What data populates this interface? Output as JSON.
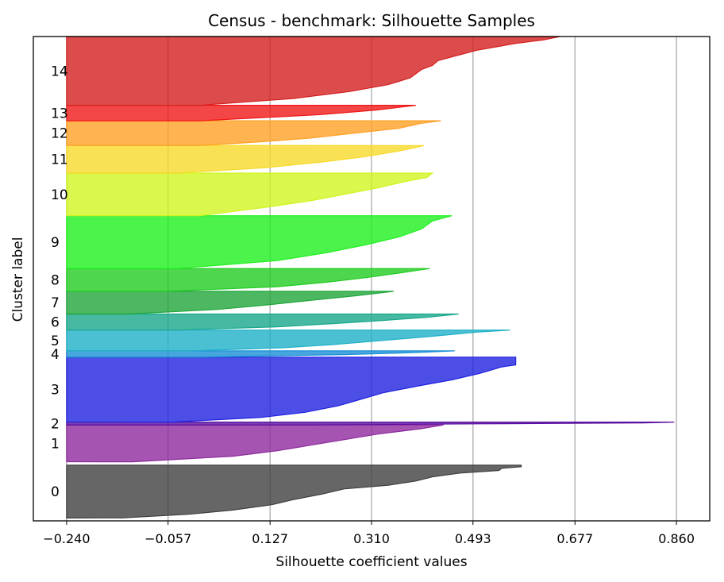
{
  "chart_data": {
    "type": "area",
    "title": "Census - benchmark: Silhouette Samples",
    "xlabel": "Silhouette coefficient values",
    "ylabel": "Cluster label",
    "xlim": [
      -0.3,
      0.92
    ],
    "xticks": [
      "-0.240",
      "-0.057",
      "0.127",
      "0.310",
      "0.493",
      "0.677",
      "0.860"
    ],
    "xtick_values": [
      -0.24,
      -0.057,
      0.127,
      0.31,
      0.493,
      0.677,
      0.86
    ],
    "grid": "vertical",
    "ylim": [
      0,
      1000
    ],
    "clusters": [
      {
        "label": "0",
        "color": "#404040",
        "y_range": [
          6,
          115
        ],
        "max": 0.58,
        "min": -0.24,
        "profile": [
          [
            0,
            0.58
          ],
          [
            0.03,
            0.58
          ],
          [
            0.06,
            0.545
          ],
          [
            0.1,
            0.54
          ],
          [
            0.15,
            0.47
          ],
          [
            0.22,
            0.42
          ],
          [
            0.3,
            0.39
          ],
          [
            0.38,
            0.34
          ],
          [
            0.45,
            0.26
          ],
          [
            0.55,
            0.22
          ],
          [
            0.65,
            0.17
          ],
          [
            0.75,
            0.13
          ],
          [
            0.85,
            0.06
          ],
          [
            0.93,
            -0.02
          ],
          [
            1,
            -0.14
          ]
        ]
      },
      {
        "label": "1",
        "color": "#8e2a9e",
        "y_range": [
          122,
          198
        ],
        "max": 0.44,
        "min": -0.24,
        "profile": [
          [
            0,
            0.44
          ],
          [
            0.1,
            0.4
          ],
          [
            0.25,
            0.32
          ],
          [
            0.4,
            0.26
          ],
          [
            0.55,
            0.2
          ],
          [
            0.7,
            0.14
          ],
          [
            0.85,
            0.06
          ],
          [
            1,
            -0.12
          ]
        ]
      },
      {
        "label": "2",
        "color": "#5a0fa0",
        "y_range": [
          198,
          204
        ],
        "max": 0.856,
        "min": -0.24,
        "profile": [
          [
            0,
            0.856
          ],
          [
            0.3,
            0.8
          ],
          [
            0.6,
            0.5
          ],
          [
            1,
            0.2
          ]
        ]
      },
      {
        "label": "3",
        "color": "#1f22e0",
        "y_range": [
          204,
          338
        ],
        "max": 0.57,
        "min": -0.24,
        "profile": [
          [
            0,
            0.57
          ],
          [
            0.12,
            0.57
          ],
          [
            0.15,
            0.545
          ],
          [
            0.25,
            0.505
          ],
          [
            0.35,
            0.455
          ],
          [
            0.45,
            0.39
          ],
          [
            0.55,
            0.33
          ],
          [
            0.65,
            0.29
          ],
          [
            0.75,
            0.25
          ],
          [
            0.85,
            0.19
          ],
          [
            0.93,
            0.11
          ],
          [
            1,
            -0.05
          ]
        ]
      },
      {
        "label": "4",
        "color": "#1a90d6",
        "y_range": [
          338,
          351
        ],
        "max": 0.46,
        "min": -0.24,
        "profile": [
          [
            0,
            0.46
          ],
          [
            0.3,
            0.38
          ],
          [
            0.6,
            0.26
          ],
          [
            1,
            0.0
          ]
        ]
      },
      {
        "label": "5",
        "color": "#1fb0c8",
        "y_range": [
          351,
          394
        ],
        "max": 0.56,
        "min": -0.24,
        "profile": [
          [
            0,
            0.56
          ],
          [
            0.1,
            0.5
          ],
          [
            0.3,
            0.42
          ],
          [
            0.5,
            0.33
          ],
          [
            0.7,
            0.24
          ],
          [
            0.85,
            0.15
          ],
          [
            1,
            -0.02
          ]
        ]
      },
      {
        "label": "6",
        "color": "#19a88c",
        "y_range": [
          394,
          427
        ],
        "max": 0.467,
        "min": -0.24,
        "profile": [
          [
            0,
            0.467
          ],
          [
            0.2,
            0.41
          ],
          [
            0.4,
            0.33
          ],
          [
            0.6,
            0.24
          ],
          [
            0.8,
            0.14
          ],
          [
            1,
            -0.04
          ]
        ]
      },
      {
        "label": "7",
        "color": "#20a63a",
        "y_range": [
          427,
          474
        ],
        "max": 0.35,
        "min": -0.24,
        "profile": [
          [
            0,
            0.35
          ],
          [
            0.2,
            0.28
          ],
          [
            0.4,
            0.2
          ],
          [
            0.6,
            0.12
          ],
          [
            0.8,
            0.03
          ],
          [
            1,
            -0.13
          ]
        ]
      },
      {
        "label": "8",
        "color": "#22cc22",
        "y_range": [
          474,
          521
        ],
        "max": 0.415,
        "min": -0.24,
        "profile": [
          [
            0,
            0.415
          ],
          [
            0.2,
            0.36
          ],
          [
            0.4,
            0.3
          ],
          [
            0.6,
            0.23
          ],
          [
            0.8,
            0.14
          ],
          [
            1,
            -0.06
          ]
        ]
      },
      {
        "label": "9",
        "color": "#1ef01e",
        "y_range": [
          521,
          630
        ],
        "max": 0.455,
        "min": -0.24,
        "profile": [
          [
            0,
            0.455
          ],
          [
            0.1,
            0.42
          ],
          [
            0.25,
            0.4
          ],
          [
            0.4,
            0.36
          ],
          [
            0.55,
            0.3
          ],
          [
            0.7,
            0.23
          ],
          [
            0.85,
            0.14
          ],
          [
            1,
            -0.04
          ]
        ]
      },
      {
        "label": "10",
        "color": "#d0f520",
        "y_range": [
          630,
          718
        ],
        "max": 0.42,
        "min": -0.24,
        "profile": [
          [
            0,
            0.42
          ],
          [
            0.1,
            0.41
          ],
          [
            0.2,
            0.37
          ],
          [
            0.35,
            0.32
          ],
          [
            0.5,
            0.26
          ],
          [
            0.65,
            0.2
          ],
          [
            0.8,
            0.12
          ],
          [
            1,
            0.0
          ]
        ]
      },
      {
        "label": "11",
        "color": "#f7da2a",
        "y_range": [
          718,
          775
        ],
        "max": 0.405,
        "min": -0.24,
        "profile": [
          [
            0,
            0.405
          ],
          [
            0.2,
            0.36
          ],
          [
            0.4,
            0.3
          ],
          [
            0.6,
            0.22
          ],
          [
            0.8,
            0.12
          ],
          [
            1,
            -0.04
          ]
        ]
      },
      {
        "label": "12",
        "color": "#ffa026",
        "y_range": [
          775,
          826
        ],
        "max": 0.435,
        "min": -0.24,
        "profile": [
          [
            0,
            0.435
          ],
          [
            0.1,
            0.4
          ],
          [
            0.3,
            0.36
          ],
          [
            0.5,
            0.28
          ],
          [
            0.7,
            0.2
          ],
          [
            0.85,
            0.11
          ],
          [
            1,
            0.0
          ]
        ]
      },
      {
        "label": "13",
        "color": "#f01818",
        "y_range": [
          826,
          858
        ],
        "max": 0.39,
        "min": -0.24,
        "profile": [
          [
            0,
            0.39
          ],
          [
            0.3,
            0.32
          ],
          [
            0.6,
            0.22
          ],
          [
            1,
            0.0
          ]
        ]
      },
      {
        "label": "14",
        "color": "#d51f1f",
        "y_range": [
          858,
          1000
        ],
        "max": 0.65,
        "min": -0.24,
        "profile": [
          [
            0,
            0.65
          ],
          [
            0.05,
            0.62
          ],
          [
            0.1,
            0.57
          ],
          [
            0.2,
            0.5
          ],
          [
            0.35,
            0.43
          ],
          [
            0.42,
            0.42
          ],
          [
            0.48,
            0.4
          ],
          [
            0.6,
            0.38
          ],
          [
            0.7,
            0.34
          ],
          [
            0.8,
            0.27
          ],
          [
            0.9,
            0.17
          ],
          [
            1,
            0.0
          ]
        ]
      }
    ]
  }
}
